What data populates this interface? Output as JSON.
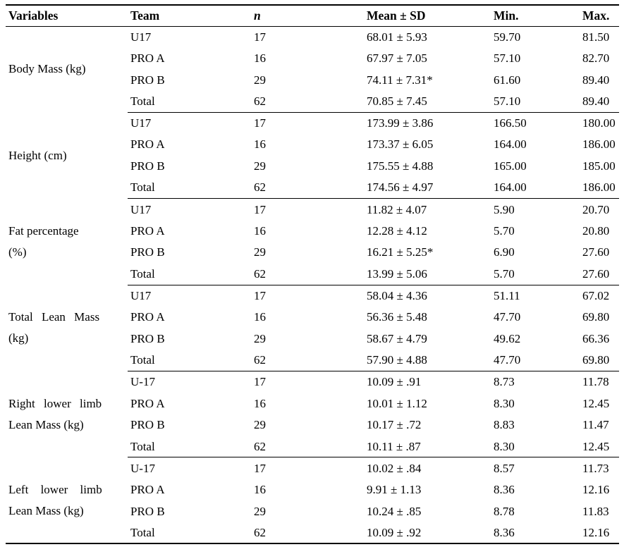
{
  "page": {
    "background_color": "#ffffff",
    "text_color": "#000000",
    "rule_color": "#000000"
  },
  "table": {
    "headers": {
      "variables": "Variables",
      "team": "Team",
      "n": "n",
      "mean_sd": "Mean ± SD",
      "min": "Min.",
      "max": "Max."
    },
    "groups": [
      {
        "variable": "Body Mass (kg)",
        "variable_lines": [
          "Body Mass (kg)"
        ],
        "rows": [
          {
            "team": "U17",
            "n": "17",
            "mean_sd": "68.01 ± 5.93",
            "min": "59.70",
            "max": "81.50"
          },
          {
            "team": "PRO A",
            "n": "16",
            "mean_sd": "67.97 ± 7.05",
            "min": "57.10",
            "max": "82.70"
          },
          {
            "team": "PRO B",
            "n": "29",
            "mean_sd": "74.11 ± 7.31*",
            "min": "61.60",
            "max": "89.40"
          },
          {
            "team": "Total",
            "n": "62",
            "mean_sd": "70.85 ± 7.45",
            "min": "57.10",
            "max": "89.40"
          }
        ]
      },
      {
        "variable": "Height (cm)",
        "variable_lines": [
          "Height (cm)"
        ],
        "rows": [
          {
            "team": "U17",
            "n": "17",
            "mean_sd": "173.99 ± 3.86",
            "min": "166.50",
            "max": "180.00"
          },
          {
            "team": "PRO A",
            "n": "16",
            "mean_sd": "173.37 ± 6.05",
            "min": "164.00",
            "max": "186.00"
          },
          {
            "team": "PRO B",
            "n": "29",
            "mean_sd": "175.55 ± 4.88",
            "min": "165.00",
            "max": "185.00"
          },
          {
            "team": "Total",
            "n": "62",
            "mean_sd": "174.56 ± 4.97",
            "min": "164.00",
            "max": "186.00"
          }
        ]
      },
      {
        "variable": "Fat percentage (%)",
        "variable_lines": [
          "Fat percentage",
          "(%)"
        ],
        "rows": [
          {
            "team": "U17",
            "n": "17",
            "mean_sd": "11.82 ± 4.07",
            "min": "5.90",
            "max": "20.70"
          },
          {
            "team": "PRO A",
            "n": "16",
            "mean_sd": "12.28 ± 4.12",
            "min": "5.70",
            "max": "20.80"
          },
          {
            "team": "PRO B",
            "n": "29",
            "mean_sd": "16.21 ± 5.25*",
            "min": "6.90",
            "max": "27.60"
          },
          {
            "team": "Total",
            "n": "62",
            "mean_sd": "13.99 ± 5.06",
            "min": "5.70",
            "max": "27.60"
          }
        ]
      },
      {
        "variable": "Total Lean Mass (kg)",
        "variable_lines": [
          "Total Lean Mass",
          "(kg)"
        ],
        "rows": [
          {
            "team": "U17",
            "n": "17",
            "mean_sd": "58.04 ± 4.36",
            "min": "51.11",
            "max": "67.02"
          },
          {
            "team": "PRO A",
            "n": "16",
            "mean_sd": "56.36 ± 5.48",
            "min": "47.70",
            "max": "69.80"
          },
          {
            "team": "PRO B",
            "n": "29",
            "mean_sd": "58.67 ± 4.79",
            "min": "49.62",
            "max": "66.36"
          },
          {
            "team": "Total",
            "n": "62",
            "mean_sd": "57.90 ± 4.88",
            "min": "47.70",
            "max": "69.80"
          }
        ]
      },
      {
        "variable": "Right lower limb Lean Mass (kg)",
        "variable_lines": [
          "Right lower limb",
          "Lean Mass (kg)"
        ],
        "rows": [
          {
            "team": "U-17",
            "n": "17",
            "mean_sd": "10.09 ± .91",
            "min": "8.73",
            "max": "11.78"
          },
          {
            "team": "PRO A",
            "n": "16",
            "mean_sd": "10.01 ± 1.12",
            "min": "8.30",
            "max": "12.45"
          },
          {
            "team": "PRO B",
            "n": "29",
            "mean_sd": "10.17 ± .72",
            "min": "8.83",
            "max": "11.47"
          },
          {
            "team": "Total",
            "n": "62",
            "mean_sd": "10.11 ± .87",
            "min": "8.30",
            "max": "12.45"
          }
        ]
      },
      {
        "variable": "Left lower limb Lean Mass (kg)",
        "variable_lines": [
          "Left lower limb",
          "Lean Mass (kg)"
        ],
        "rows": [
          {
            "team": "U-17",
            "n": "17",
            "mean_sd": "10.02 ± .84",
            "min": "8.57",
            "max": "11.73"
          },
          {
            "team": "PRO A",
            "n": "16",
            "mean_sd": "9.91 ± 1.13",
            "min": "8.36",
            "max": "12.16"
          },
          {
            "team": "PRO B",
            "n": "29",
            "mean_sd": "10.24 ± .85",
            "min": "8.78",
            "max": "11.83"
          },
          {
            "team": "Total",
            "n": "62",
            "mean_sd": "10.09 ± .92",
            "min": "8.36",
            "max": "12.16"
          }
        ]
      }
    ]
  }
}
